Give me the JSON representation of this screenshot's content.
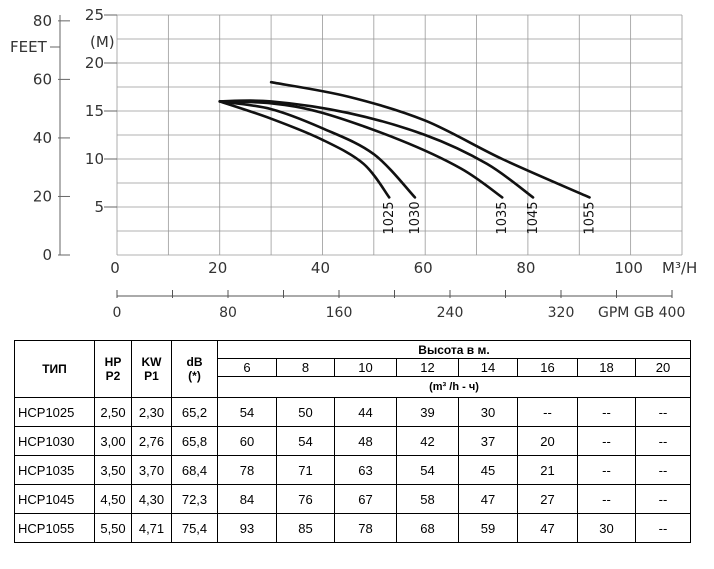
{
  "chart_data": {
    "type": "line",
    "x_label": "M³/H",
    "x_ticks": [
      0,
      20,
      40,
      60,
      80,
      100
    ],
    "xlim": [
      0,
      110
    ],
    "y_label_m": "(M)",
    "y_ticks_m": [
      5,
      10,
      15,
      20,
      25
    ],
    "ylim_m": [
      0,
      25
    ],
    "y_label_ft": "FEET",
    "y_ticks_ft": [
      0,
      20,
      40,
      60,
      80
    ],
    "gpm_label": "GPM GB",
    "gpm_ticks": [
      0,
      80,
      160,
      240,
      320,
      400
    ],
    "grid": true,
    "series": [
      {
        "name": "1025",
        "points": [
          [
            20,
            16
          ],
          [
            30,
            14.2
          ],
          [
            40,
            12
          ],
          [
            48,
            9.5
          ],
          [
            53,
            6
          ]
        ]
      },
      {
        "name": "1030",
        "points": [
          [
            20,
            16
          ],
          [
            30,
            15.2
          ],
          [
            40,
            13.2
          ],
          [
            50,
            10.5
          ],
          [
            58,
            6
          ]
        ]
      },
      {
        "name": "1035",
        "points": [
          [
            20,
            16
          ],
          [
            30,
            15.8
          ],
          [
            40,
            14.8
          ],
          [
            55,
            12
          ],
          [
            67,
            9
          ],
          [
            75,
            6
          ]
        ]
      },
      {
        "name": "1045",
        "points": [
          [
            20,
            16
          ],
          [
            30,
            16
          ],
          [
            45,
            14.8
          ],
          [
            60,
            12.5
          ],
          [
            72,
            9.5
          ],
          [
            81,
            6
          ]
        ]
      },
      {
        "name": "1055",
        "points": [
          [
            30,
            18
          ],
          [
            45,
            16.5
          ],
          [
            60,
            14
          ],
          [
            75,
            10
          ],
          [
            92,
            6
          ]
        ]
      }
    ]
  },
  "table": {
    "col_model": "ТИП",
    "col_hp": [
      "HP",
      "P2"
    ],
    "col_kw": [
      "KW",
      "P1"
    ],
    "col_db": [
      "dB",
      "(*)"
    ],
    "height_title": "Высота в м.",
    "heights": [
      "6",
      "8",
      "10",
      "12",
      "14",
      "16",
      "18",
      "20"
    ],
    "flow_unit": "(m³ /h - ч)",
    "rows": [
      {
        "model": "HCP1025",
        "hp": "2,50",
        "kw": "2,30",
        "db": "65,2",
        "flows": [
          "54",
          "50",
          "44",
          "39",
          "30",
          "--",
          "--",
          "--"
        ]
      },
      {
        "model": "HCP1030",
        "hp": "3,00",
        "kw": "2,76",
        "db": "65,8",
        "flows": [
          "60",
          "54",
          "48",
          "42",
          "37",
          "20",
          "--",
          "--"
        ]
      },
      {
        "model": "HCP1035",
        "hp": "3,50",
        "kw": "3,70",
        "db": "68,4",
        "flows": [
          "78",
          "71",
          "63",
          "54",
          "45",
          "21",
          "--",
          "--"
        ]
      },
      {
        "model": "HCP1045",
        "hp": "4,50",
        "kw": "4,30",
        "db": "72,3",
        "flows": [
          "84",
          "76",
          "67",
          "58",
          "47",
          "27",
          "--",
          "--"
        ]
      },
      {
        "model": "HCP1055",
        "hp": "5,50",
        "kw": "4,71",
        "db": "75,4",
        "flows": [
          "93",
          "85",
          "78",
          "68",
          "59",
          "47",
          "30",
          "--"
        ]
      }
    ]
  }
}
